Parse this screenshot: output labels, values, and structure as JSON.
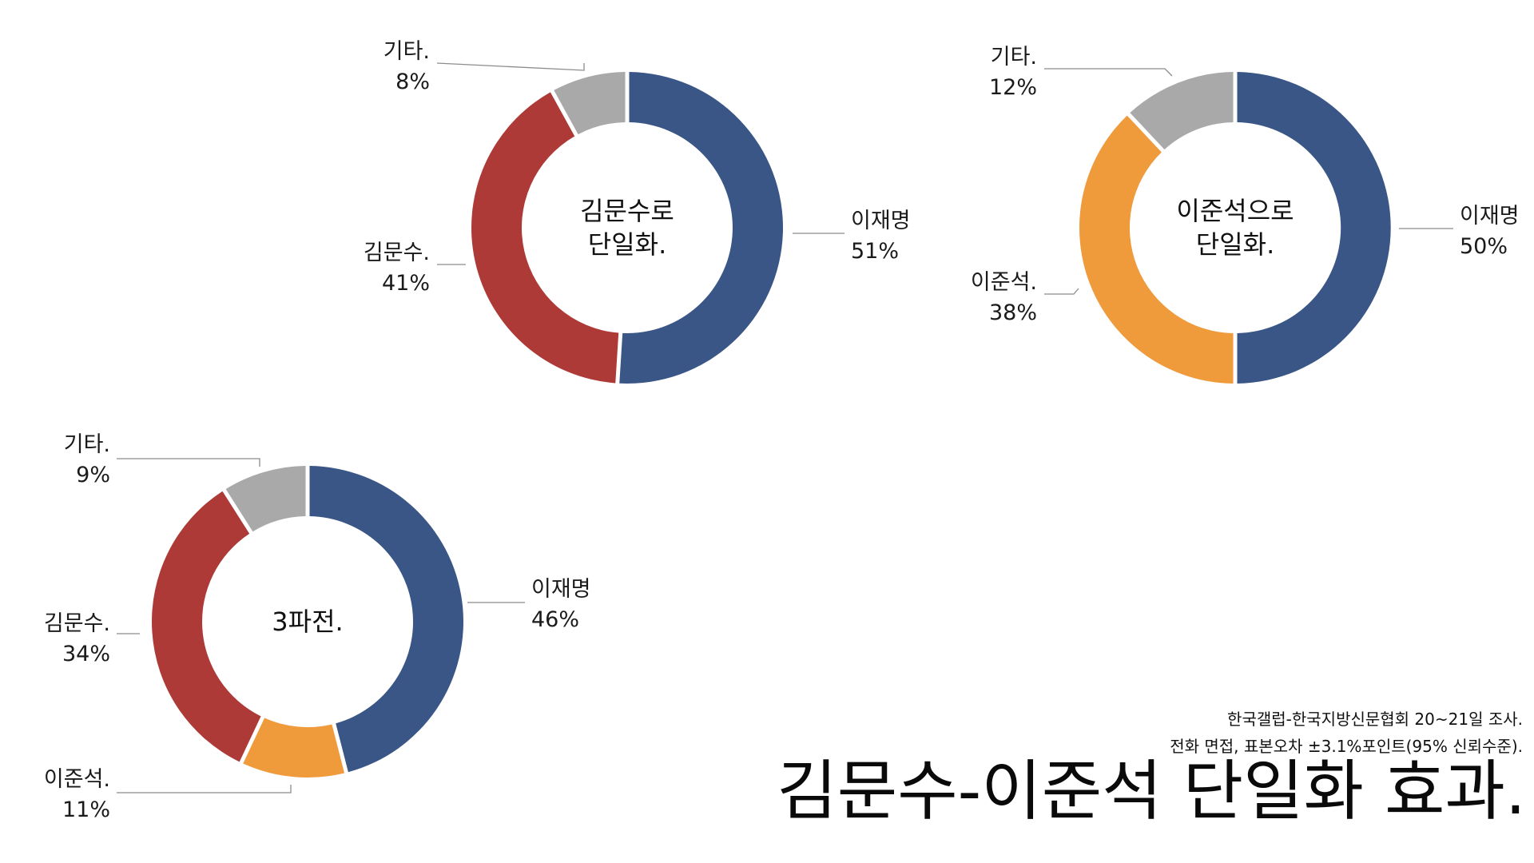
{
  "title": "김문수-이준석 단일화 효과.",
  "source_lines": [
    "한국갤럽-한국지방신문협회 20~21일 조사.",
    "전화 면접, 표본오차 ±3.1%포인트(95% 신뢰수준)."
  ],
  "colors": {
    "lee_jaemyung": "#3a5686",
    "kim_moonsoo": "#ad3a37",
    "lee_junseok": "#ef9a3b",
    "others": "#a9a9a9"
  },
  "chart_data": [
    {
      "type": "pie",
      "donut": true,
      "center_label": [
        "김문수로",
        "단일화."
      ],
      "slices": [
        {
          "name": "이재명",
          "value": 51,
          "display": "51%",
          "color_key": "lee_jaemyung"
        },
        {
          "name": "김문수.",
          "value": 41,
          "display": "41%",
          "color_key": "kim_moonsoo"
        },
        {
          "name": "기타.",
          "value": 8,
          "display": "8%",
          "color_key": "others"
        }
      ]
    },
    {
      "type": "pie",
      "donut": true,
      "center_label": [
        "이준석으로",
        "단일화."
      ],
      "slices": [
        {
          "name": "이재명",
          "value": 50,
          "display": "50%",
          "color_key": "lee_jaemyung"
        },
        {
          "name": "이준석.",
          "value": 38,
          "display": "38%",
          "color_key": "lee_junseok"
        },
        {
          "name": "기타.",
          "value": 12,
          "display": "12%",
          "color_key": "others"
        }
      ]
    },
    {
      "type": "pie",
      "donut": true,
      "center_label": [
        "3파전."
      ],
      "slices": [
        {
          "name": "이재명",
          "value": 46,
          "display": "46%",
          "color_key": "lee_jaemyung"
        },
        {
          "name": "이준석.",
          "value": 11,
          "display": "11%",
          "color_key": "lee_junseok"
        },
        {
          "name": "김문수.",
          "value": 34,
          "display": "34%",
          "color_key": "kim_moonsoo"
        },
        {
          "name": "기타.",
          "value": 9,
          "display": "9%",
          "color_key": "others"
        }
      ]
    }
  ]
}
